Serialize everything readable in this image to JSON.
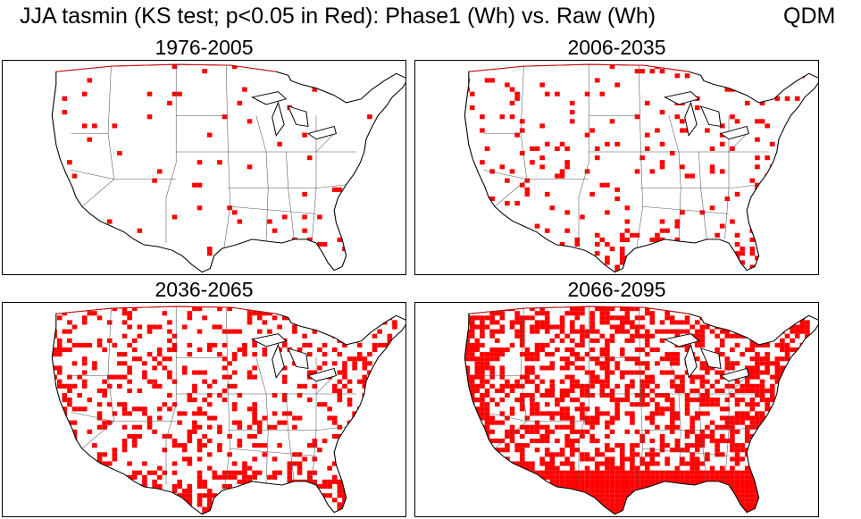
{
  "title": {
    "main": "JJA  tasmin (KS test; p<0.05 in Red): Phase1 (Wh) vs. Raw (Wh)",
    "method": "QDM"
  },
  "colors": {
    "significant": "#ff0000",
    "outline": "#000000",
    "background": "#ffffff"
  },
  "panels": [
    {
      "id": "p1",
      "label": "1976-2005",
      "coverage": 0.02
    },
    {
      "id": "p2",
      "label": "2006-2035",
      "coverage": 0.08
    },
    {
      "id": "p3",
      "label": "2036-2065",
      "coverage": 0.22
    },
    {
      "id": "p4",
      "label": "2066-2095",
      "coverage": 0.45
    }
  ]
}
